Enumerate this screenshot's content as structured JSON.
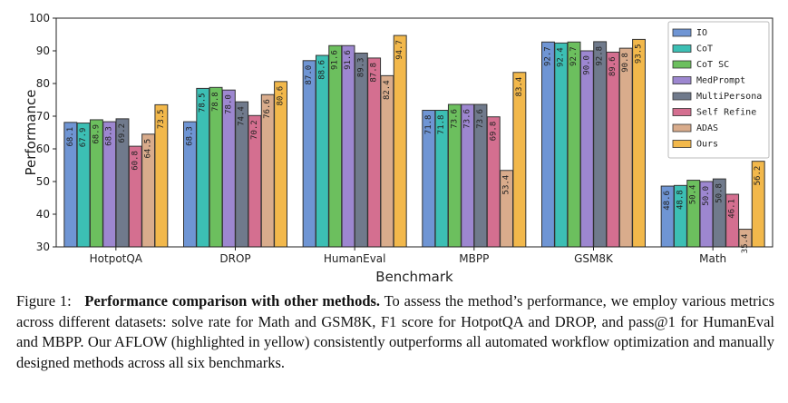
{
  "chart_data": {
    "type": "bar",
    "xlabel": "Benchmark",
    "ylabel": "Performance",
    "ylim": [
      30,
      100
    ],
    "yticks": [
      30,
      40,
      50,
      60,
      70,
      80,
      90,
      100
    ],
    "categories": [
      "HotpotQA",
      "DROP",
      "HumanEval",
      "MBPP",
      "GSM8K",
      "Math"
    ],
    "legend_position": "top-right",
    "grid": false,
    "series": [
      {
        "name": "IO",
        "color": "#6f95d4",
        "values": [
          68.1,
          68.3,
          87.0,
          71.8,
          92.7,
          48.6
        ]
      },
      {
        "name": "CoT",
        "color": "#3cbfb4",
        "values": [
          67.9,
          78.5,
          88.6,
          71.8,
          92.4,
          48.8
        ]
      },
      {
        "name": "CoT SC",
        "color": "#6cbf5e",
        "values": [
          68.9,
          78.8,
          91.6,
          73.6,
          92.7,
          50.4
        ]
      },
      {
        "name": "MedPrompt",
        "color": "#9d87d0",
        "values": [
          68.3,
          78.0,
          91.6,
          73.6,
          90.0,
          50.0
        ]
      },
      {
        "name": "MultiPersona",
        "color": "#707a8c",
        "values": [
          69.2,
          74.4,
          89.3,
          73.6,
          92.8,
          50.8
        ]
      },
      {
        "name": "Self Refine",
        "color": "#d46f90",
        "values": [
          60.8,
          70.2,
          87.8,
          69.8,
          89.6,
          46.1
        ]
      },
      {
        "name": "ADAS",
        "color": "#d9ac8c",
        "values": [
          64.5,
          76.6,
          82.4,
          53.4,
          90.8,
          35.4
        ]
      },
      {
        "name": "Ours",
        "color": "#f2b84b",
        "values": [
          73.5,
          80.6,
          94.7,
          83.4,
          93.5,
          56.2
        ]
      }
    ]
  },
  "caption": {
    "label": "Figure 1:",
    "bold": "Performance comparison with other methods.",
    "text": "To assess the method’s performance, we employ various metrics across different datasets: solve rate for Math and GSM8K, F1 score for HotpotQA and DROP, and pass@1 for HumanEval and MBPP. Our AFLOW (highlighted in yellow) consistently outperforms all automated workflow optimization and manually designed methods across all six benchmarks."
  }
}
